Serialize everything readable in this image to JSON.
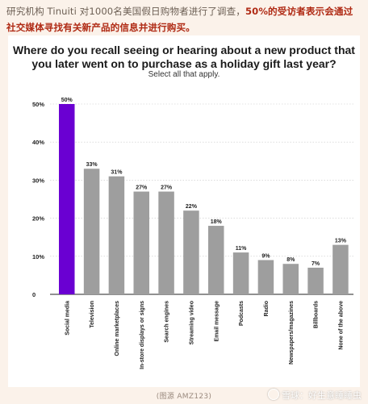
{
  "article": {
    "intro_pre": "研究机构 Tinuiti 对1000名美国假日购物者进行了调查，",
    "intro_highlight": "50%的受访者表示会通过社交媒体寻找有关新产品的信息并进行购买。",
    "caption": "(图源 AMZ123)"
  },
  "watermark": {
    "text": "雪球：好生意睡睡虫"
  },
  "colors": {
    "highlight_bar": "#6a00d2",
    "bar": "#9e9e9e",
    "gridline": "#c8c8c8",
    "axis": "#222222",
    "intro_highlight": "#b02b15"
  },
  "chart_data": {
    "type": "bar",
    "title": "Where do you recall seeing or hearing about a new product that you later went on to purchase as a holiday gift last year?",
    "subtitle": "Select all that apply.",
    "xlabel": "",
    "ylabel": "",
    "ylim": [
      0,
      50
    ],
    "yticks": [
      0,
      10,
      20,
      30,
      40,
      50
    ],
    "ytick_labels": [
      "0",
      "10%",
      "20%",
      "30%",
      "40%",
      "50%"
    ],
    "grid": true,
    "categories": [
      "Social media",
      "Television",
      "Online marketplaces",
      "In-store displays or signs",
      "Search engines",
      "Streaming video",
      "Email message",
      "Podcasts",
      "Radio",
      "Newspapers/magazines",
      "Billboards",
      "None of the above"
    ],
    "values": [
      50,
      33,
      31,
      27,
      27,
      22,
      18,
      11,
      9,
      8,
      7,
      13
    ],
    "value_labels": [
      "50%",
      "33%",
      "31%",
      "27%",
      "27%",
      "22%",
      "18%",
      "11%",
      "9%",
      "8%",
      "7%",
      "13%"
    ],
    "highlight_index": 0
  }
}
